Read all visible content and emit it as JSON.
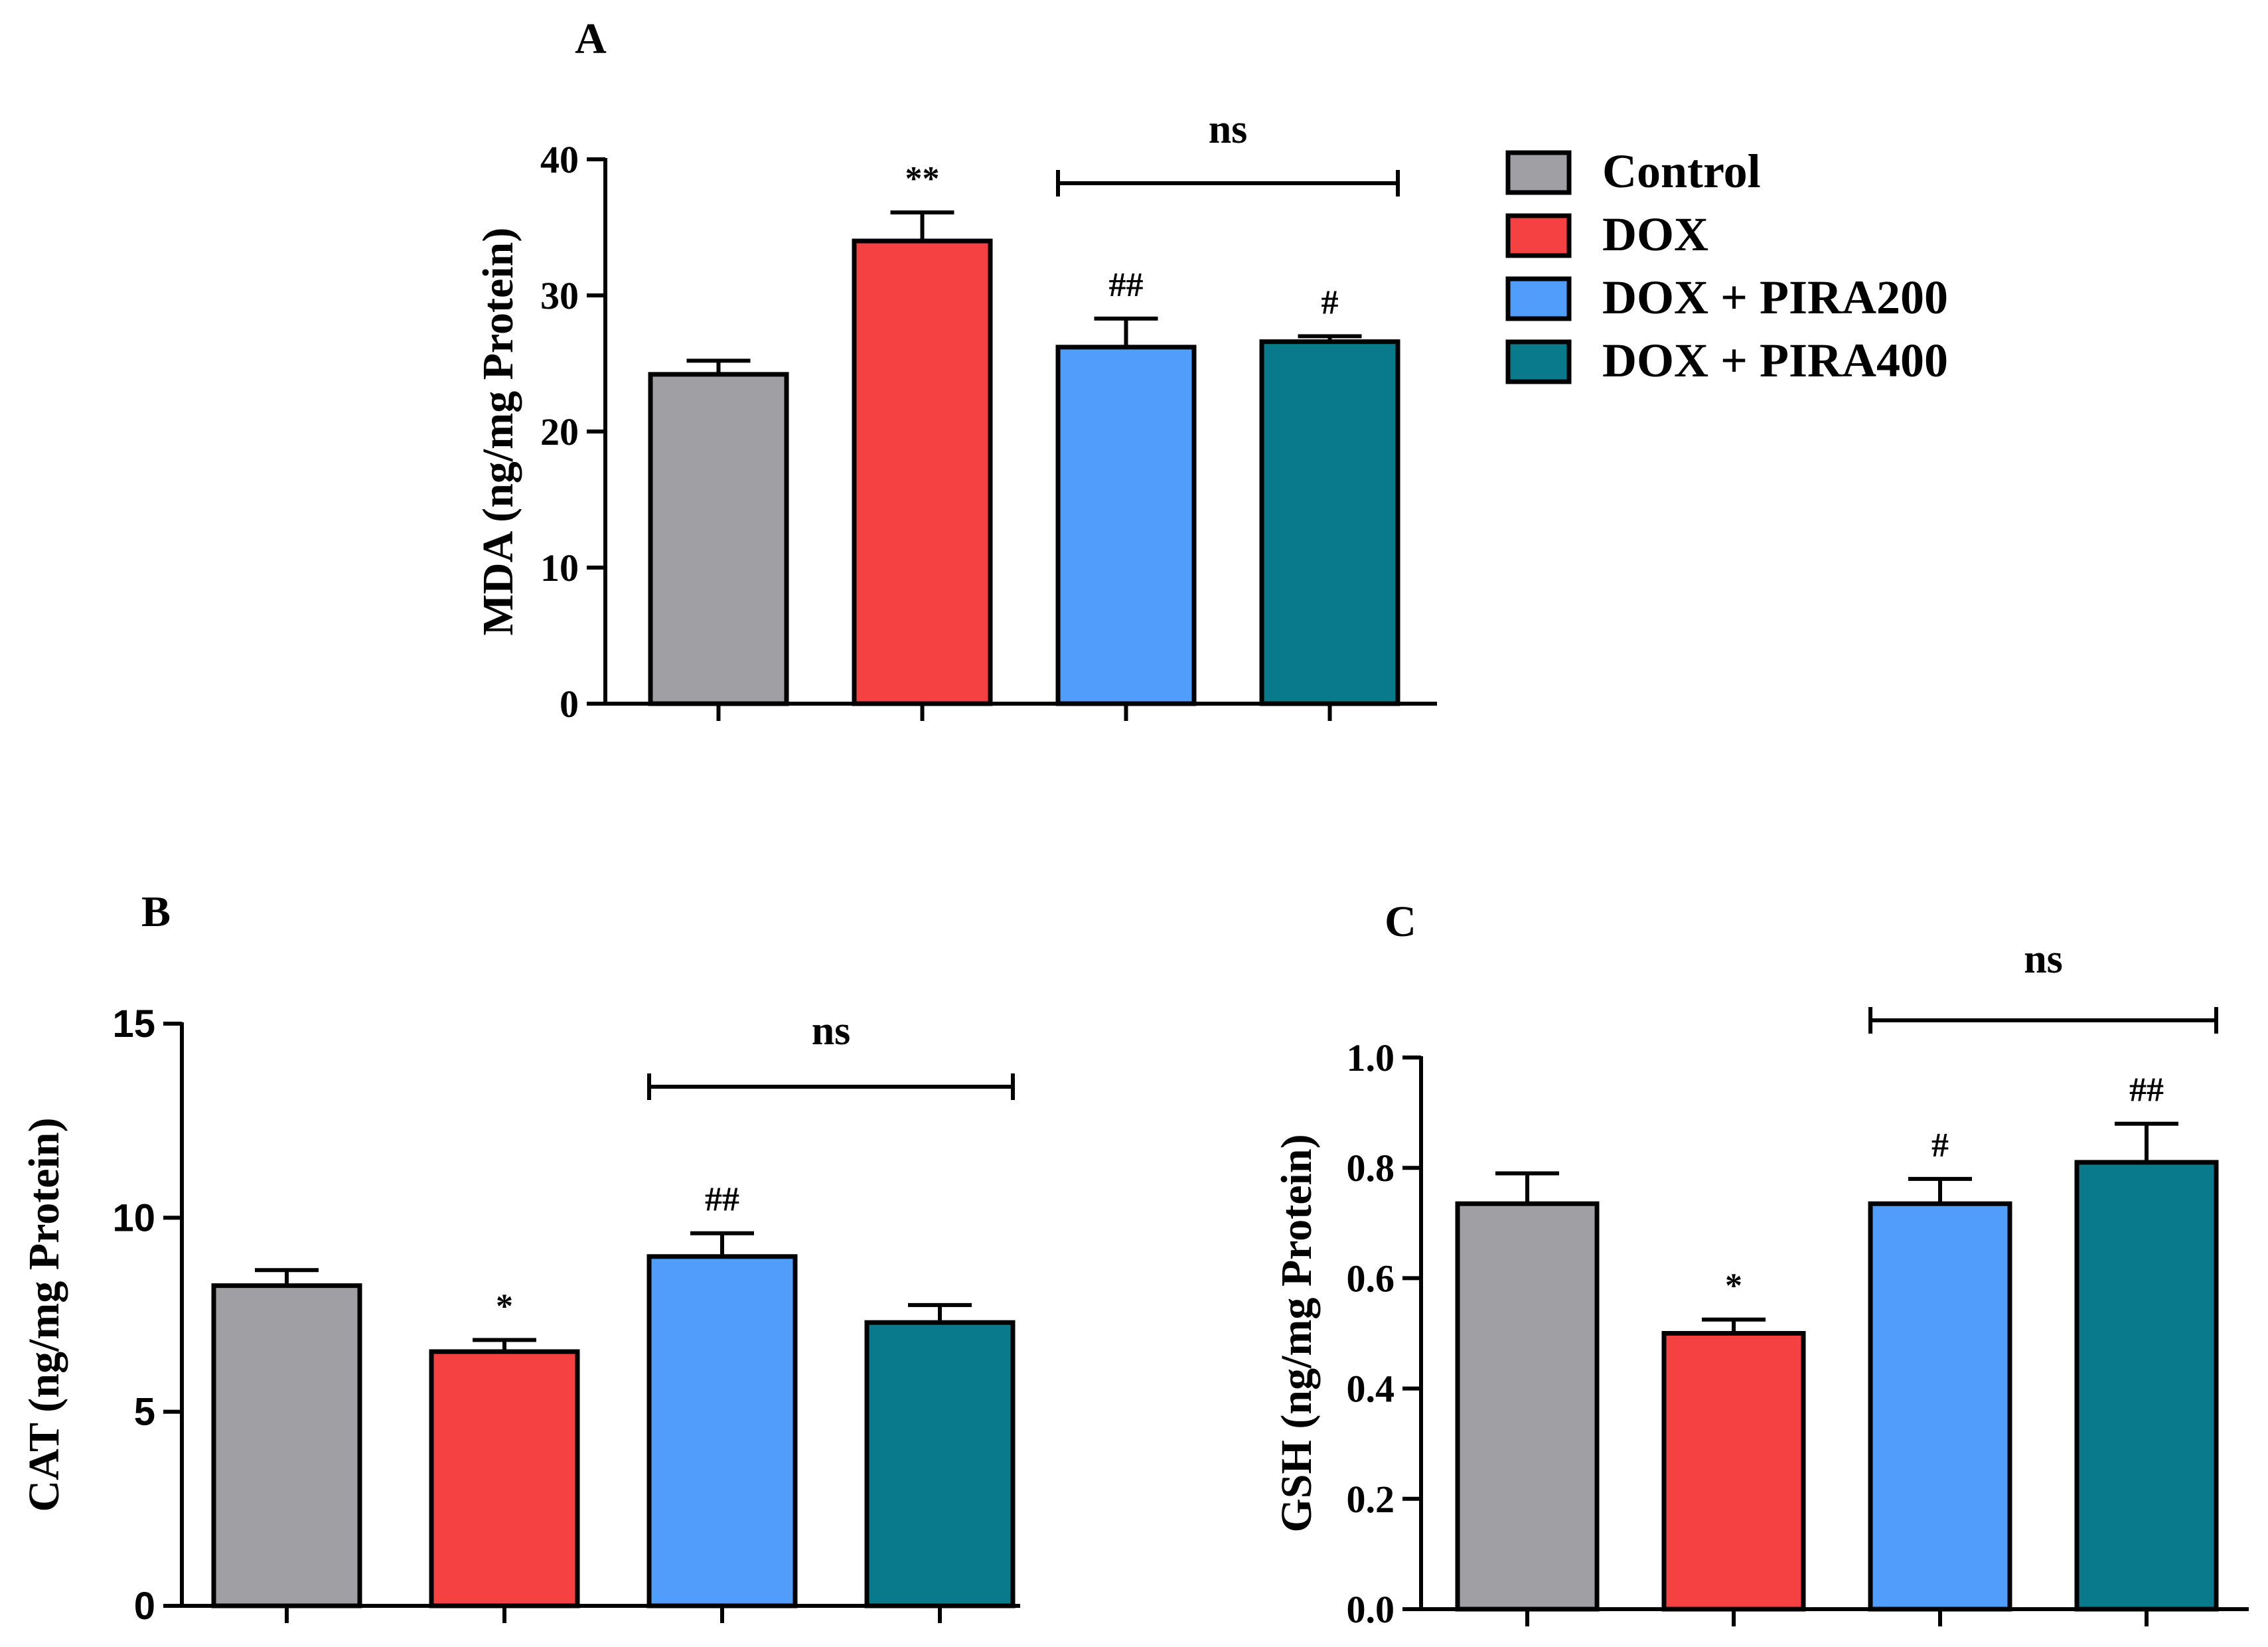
{
  "colors": {
    "Control": "#a09fa3",
    "DOX": "#f54141",
    "DOX + PIRA200": "#519dfc",
    "DOX + PIRA400": "#097a8c",
    "axis": "#000000"
  },
  "legend": {
    "items": [
      "Control",
      "DOX",
      "DOX + PIRA200",
      "DOX + PIRA400"
    ]
  },
  "chart_data": [
    {
      "panel": "A",
      "type": "bar",
      "ylabel": "MDA (ng/mg Protein)",
      "xlabel": "",
      "categories": [
        "Control",
        "DOX",
        "DOX + PIRA200",
        "DOX + PIRA400"
      ],
      "values": [
        24.2,
        34.0,
        26.2,
        26.6
      ],
      "errors": [
        1.0,
        2.1,
        2.1,
        0.4
      ],
      "significance": [
        "",
        "**",
        "##",
        "#"
      ],
      "ylim": [
        0,
        40
      ],
      "yticks": [
        0,
        10,
        20,
        30,
        40
      ],
      "ytick_labels": [
        "0",
        "10",
        "20",
        "30",
        "40"
      ],
      "bracket": {
        "label": "ns",
        "from": 2,
        "to": 3
      }
    },
    {
      "panel": "B",
      "type": "bar",
      "ylabel": "CAT (ng/mg Protein)",
      "xlabel": "",
      "categories": [
        "Control",
        "DOX",
        "DOX + PIRA200",
        "DOX + PIRA400"
      ],
      "values": [
        8.25,
        6.55,
        9.0,
        7.3
      ],
      "errors": [
        0.4,
        0.3,
        0.6,
        0.45
      ],
      "significance": [
        "",
        "*",
        "##",
        ""
      ],
      "ylim": [
        0,
        15
      ],
      "yticks": [
        0,
        5,
        10,
        15
      ],
      "ytick_labels": [
        "0",
        "5",
        "10",
        "15"
      ],
      "bracket": {
        "label": "ns",
        "from": 2,
        "to": 3
      }
    },
    {
      "panel": "C",
      "type": "bar",
      "ylabel": "GSH (ng/mg Protein)",
      "xlabel": "",
      "categories": [
        "Control",
        "DOX",
        "DOX + PIRA200",
        "DOX + PIRA400"
      ],
      "values": [
        0.735,
        0.5,
        0.735,
        0.81
      ],
      "errors": [
        0.055,
        0.025,
        0.045,
        0.07
      ],
      "significance": [
        "",
        "*",
        "#",
        "##"
      ],
      "ylim": [
        0,
        1.0
      ],
      "yticks": [
        0,
        0.2,
        0.4,
        0.6,
        0.8,
        1.0
      ],
      "ytick_labels": [
        "0.0",
        "0.2",
        "0.4",
        "0.6",
        "0.8",
        "1.0"
      ],
      "bracket": {
        "label": "ns",
        "from": 2,
        "to": 3
      }
    }
  ]
}
